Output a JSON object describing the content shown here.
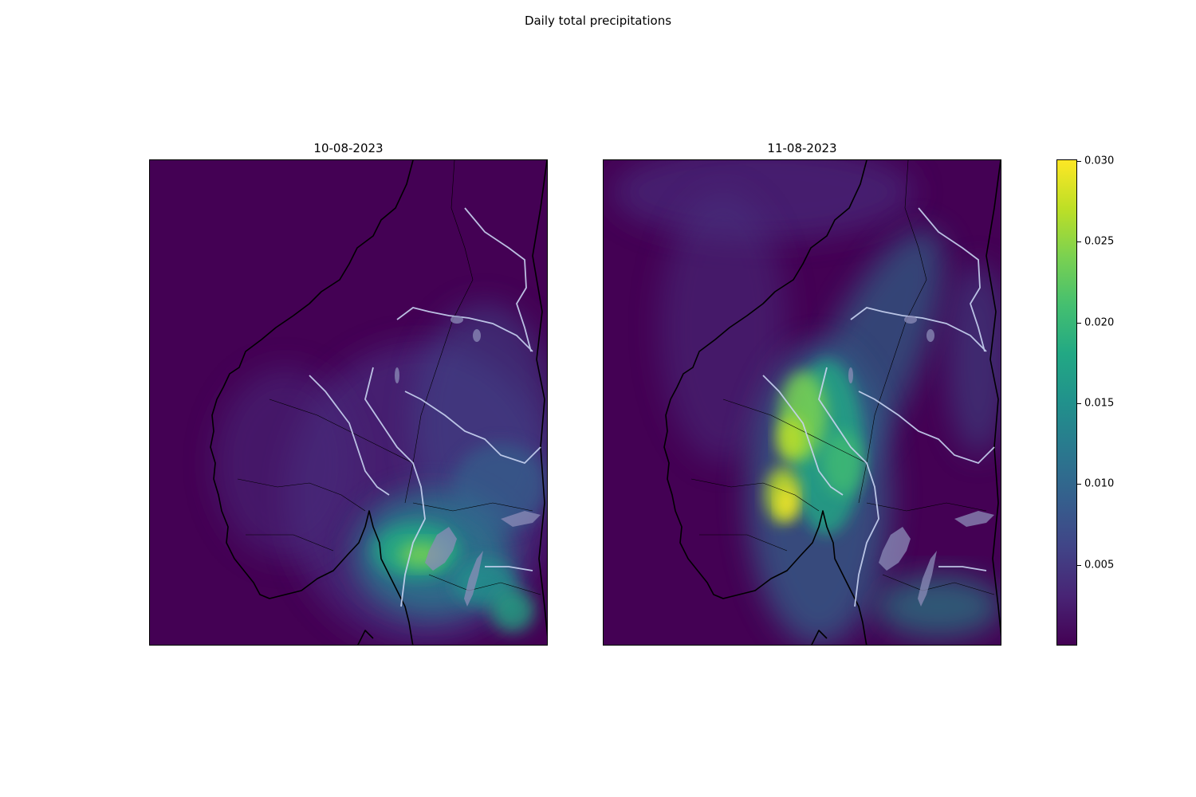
{
  "figure": {
    "title": "Daily total precipitations"
  },
  "panels": [
    {
      "title": "10-08-2023"
    },
    {
      "title": "11-08-2023"
    }
  ],
  "colorbar": {
    "colormap": "viridis",
    "min": 0,
    "max": 0.0301,
    "ticks": [
      {
        "value": 0.005,
        "label": "0.005"
      },
      {
        "value": 0.01,
        "label": "0.010"
      },
      {
        "value": 0.015,
        "label": "0.015"
      },
      {
        "value": 0.02,
        "label": "0.020"
      },
      {
        "value": 0.025,
        "label": "0.025"
      },
      {
        "value": 0.03,
        "label": "0.030"
      }
    ]
  },
  "colors": {
    "low": "#440154",
    "high": "#fde725",
    "coastline": "#000000",
    "rivers": "#c9d4f2",
    "lakes": "#8c8cb8"
  }
}
